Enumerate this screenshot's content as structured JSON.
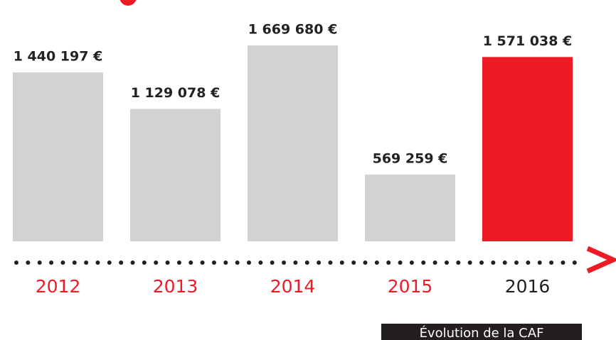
{
  "chart_data": {
    "type": "bar",
    "categories": [
      "2012",
      "2013",
      "2014",
      "2015",
      "2016"
    ],
    "values": [
      1440197,
      1129078,
      1669680,
      569259,
      1571038
    ],
    "value_labels": [
      "1 440 197 €",
      "1 129 078 €",
      "1 669 680 €",
      "569 259 €",
      "1 571 038 €"
    ],
    "colors": [
      "#d1d2d4",
      "#d1d2d4",
      "#d1d2d4",
      "#d1d2d4",
      "#ed1c24"
    ],
    "label_colors": [
      "#ed1c24",
      "#ed1c24",
      "#ed1c24",
      "#ed1c24",
      "#231f20"
    ],
    "annotation": "Évolution de la CAF"
  }
}
